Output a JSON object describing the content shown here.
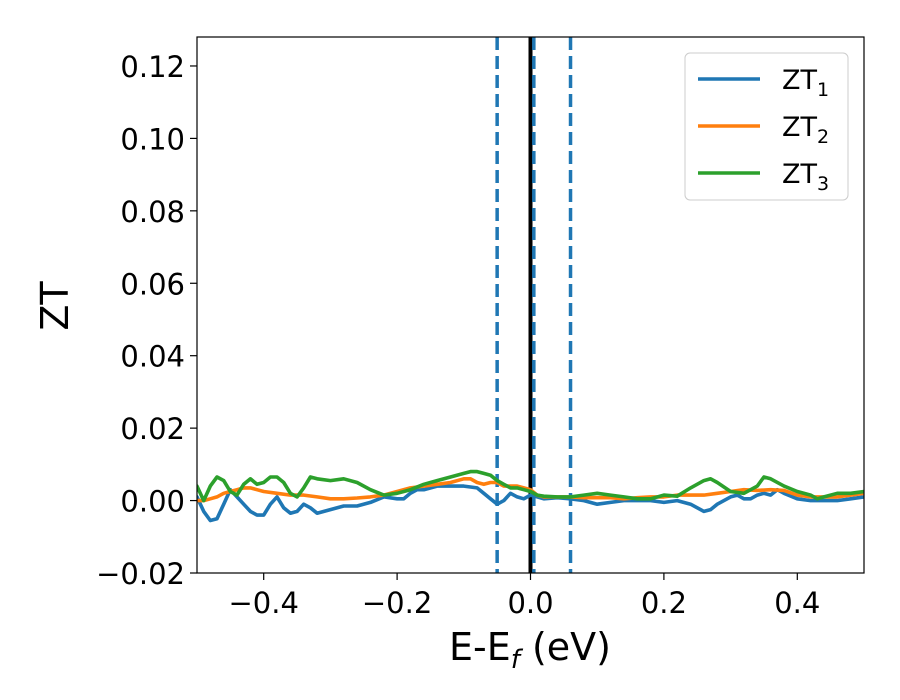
{
  "chart_data": {
    "type": "line",
    "title": "",
    "xlabel": "E-E",
    "xlabel_subscript": "f",
    "xlabel_unit": " (eV)",
    "ylabel": "ZT",
    "xlim": [
      -0.5,
      0.5
    ],
    "ylim": [
      -0.02,
      0.128
    ],
    "xticks": [
      -0.4,
      -0.2,
      0.0,
      0.2,
      0.4
    ],
    "xtick_labels": [
      "−0.4",
      "−0.2",
      "0.0",
      "0.2",
      "0.4"
    ],
    "yticks": [
      -0.02,
      0.0,
      0.02,
      0.04,
      0.06,
      0.08,
      0.1,
      0.12
    ],
    "ytick_labels": [
      "−0.02",
      "0.00",
      "0.02",
      "0.04",
      "0.06",
      "0.08",
      "0.10",
      "0.12"
    ],
    "grid": false,
    "legend_position": "top-right",
    "vertical_lines": [
      {
        "x": -0.05,
        "style": "dashed",
        "color": "#1f77b4"
      },
      {
        "x": 0.0,
        "style": "solid",
        "color": "#000000"
      },
      {
        "x": 0.005,
        "style": "dashed",
        "color": "#1f77b4"
      },
      {
        "x": 0.06,
        "style": "dashed",
        "color": "#1f77b4"
      }
    ],
    "series": [
      {
        "name": "ZT",
        "name_subscript": "1",
        "color": "#1f77b4",
        "x": [
          -0.5,
          -0.49,
          -0.48,
          -0.47,
          -0.46,
          -0.45,
          -0.44,
          -0.43,
          -0.42,
          -0.41,
          -0.4,
          -0.39,
          -0.38,
          -0.37,
          -0.36,
          -0.35,
          -0.34,
          -0.33,
          -0.32,
          -0.3,
          -0.28,
          -0.26,
          -0.24,
          -0.22,
          -0.2,
          -0.19,
          -0.18,
          -0.17,
          -0.16,
          -0.14,
          -0.12,
          -0.1,
          -0.08,
          -0.07,
          -0.06,
          -0.05,
          -0.04,
          -0.03,
          -0.02,
          -0.01,
          0.0,
          0.01,
          0.02,
          0.04,
          0.06,
          0.08,
          0.1,
          0.12,
          0.14,
          0.16,
          0.18,
          0.2,
          0.22,
          0.24,
          0.26,
          0.27,
          0.28,
          0.3,
          0.31,
          0.32,
          0.33,
          0.34,
          0.35,
          0.36,
          0.37,
          0.38,
          0.4,
          0.42,
          0.44,
          0.46,
          0.48,
          0.5
        ],
        "y": [
          0.001,
          -0.003,
          -0.0055,
          -0.005,
          -0.001,
          0.003,
          0.001,
          -0.001,
          -0.003,
          -0.004,
          -0.004,
          -0.001,
          0.001,
          -0.002,
          -0.0035,
          -0.003,
          -0.001,
          -0.002,
          -0.0035,
          -0.0025,
          -0.0015,
          -0.0015,
          -0.0005,
          0.001,
          0.0005,
          0.0005,
          0.002,
          0.003,
          0.003,
          0.004,
          0.004,
          0.004,
          0.0035,
          0.002,
          0.0005,
          -0.001,
          0.0,
          0.002,
          0.001,
          0.0005,
          0.0015,
          0.001,
          0.0005,
          0.0008,
          0.0005,
          0.0,
          -0.001,
          -0.0005,
          0.0,
          0.0,
          0.0,
          -0.0005,
          0.0,
          -0.001,
          -0.003,
          -0.0025,
          -0.001,
          0.001,
          0.0015,
          0.0005,
          0.0005,
          0.0015,
          0.002,
          0.0015,
          0.003,
          0.002,
          0.0005,
          0.0,
          0.0,
          0.0,
          0.0005,
          0.001
        ]
      },
      {
        "name": "ZT",
        "name_subscript": "2",
        "color": "#ff7f0e",
        "x": [
          -0.5,
          -0.49,
          -0.48,
          -0.47,
          -0.46,
          -0.45,
          -0.44,
          -0.43,
          -0.42,
          -0.41,
          -0.4,
          -0.38,
          -0.36,
          -0.34,
          -0.32,
          -0.3,
          -0.28,
          -0.26,
          -0.24,
          -0.22,
          -0.2,
          -0.18,
          -0.16,
          -0.14,
          -0.12,
          -0.1,
          -0.09,
          -0.08,
          -0.07,
          -0.06,
          -0.05,
          -0.04,
          -0.03,
          -0.02,
          -0.01,
          0.0,
          0.01,
          0.02,
          0.04,
          0.06,
          0.08,
          0.1,
          0.12,
          0.14,
          0.16,
          0.18,
          0.2,
          0.22,
          0.24,
          0.26,
          0.28,
          0.3,
          0.32,
          0.34,
          0.36,
          0.38,
          0.4,
          0.42,
          0.44,
          0.46,
          0.48,
          0.5
        ],
        "y": [
          0.0,
          0.0,
          0.0005,
          0.001,
          0.002,
          0.0025,
          0.003,
          0.0035,
          0.0035,
          0.003,
          0.0025,
          0.002,
          0.0015,
          0.0015,
          0.001,
          0.0005,
          0.0005,
          0.0007,
          0.001,
          0.0015,
          0.0025,
          0.0035,
          0.004,
          0.0045,
          0.005,
          0.006,
          0.006,
          0.005,
          0.0045,
          0.005,
          0.005,
          0.004,
          0.004,
          0.004,
          0.0035,
          0.003,
          0.0015,
          0.001,
          0.001,
          0.001,
          0.0008,
          0.0008,
          0.0008,
          0.0005,
          0.0008,
          0.001,
          0.001,
          0.0015,
          0.0015,
          0.0015,
          0.002,
          0.0025,
          0.003,
          0.0028,
          0.003,
          0.0028,
          0.0015,
          0.001,
          0.001,
          0.001,
          0.0015,
          0.002
        ]
      },
      {
        "name": "ZT",
        "name_subscript": "3",
        "color": "#2ca02c",
        "x": [
          -0.5,
          -0.49,
          -0.48,
          -0.47,
          -0.46,
          -0.45,
          -0.44,
          -0.43,
          -0.42,
          -0.41,
          -0.4,
          -0.39,
          -0.38,
          -0.37,
          -0.36,
          -0.35,
          -0.34,
          -0.33,
          -0.32,
          -0.3,
          -0.28,
          -0.26,
          -0.24,
          -0.22,
          -0.2,
          -0.18,
          -0.16,
          -0.14,
          -0.12,
          -0.1,
          -0.09,
          -0.08,
          -0.07,
          -0.06,
          -0.05,
          -0.04,
          -0.03,
          -0.02,
          -0.01,
          0.0,
          0.01,
          0.02,
          0.04,
          0.06,
          0.08,
          0.1,
          0.12,
          0.14,
          0.16,
          0.18,
          0.2,
          0.22,
          0.24,
          0.26,
          0.27,
          0.28,
          0.3,
          0.32,
          0.34,
          0.35,
          0.36,
          0.38,
          0.4,
          0.42,
          0.43,
          0.44,
          0.46,
          0.48,
          0.5
        ],
        "y": [
          0.004,
          0.0,
          0.004,
          0.0065,
          0.0055,
          0.0025,
          0.0015,
          0.0045,
          0.006,
          0.0045,
          0.005,
          0.0065,
          0.0065,
          0.005,
          0.002,
          0.001,
          0.0035,
          0.0065,
          0.006,
          0.0055,
          0.006,
          0.005,
          0.003,
          0.0015,
          0.002,
          0.003,
          0.0045,
          0.0055,
          0.0065,
          0.0075,
          0.008,
          0.008,
          0.0075,
          0.007,
          0.0055,
          0.0045,
          0.0035,
          0.0035,
          0.003,
          0.0025,
          0.0015,
          0.0012,
          0.001,
          0.001,
          0.0015,
          0.002,
          0.0015,
          0.001,
          0.0005,
          0.0005,
          0.0015,
          0.0012,
          0.0035,
          0.0055,
          0.006,
          0.005,
          0.0025,
          0.002,
          0.004,
          0.0065,
          0.006,
          0.004,
          0.0025,
          0.0015,
          0.0005,
          0.001,
          0.002,
          0.002,
          0.0025
        ]
      }
    ]
  }
}
